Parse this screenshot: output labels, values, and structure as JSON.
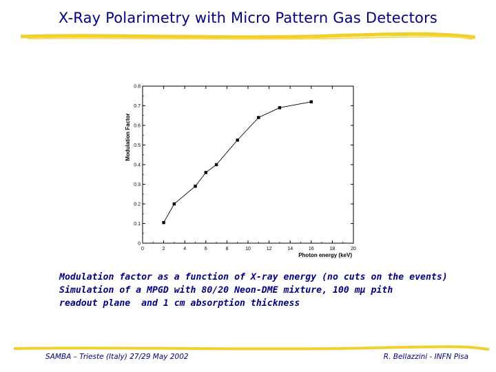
{
  "slide": {
    "title": "X-Ray Polarimetry with Micro Pattern Gas Detectors",
    "caption_lines": [
      "Modulation factor as a function of X-ray energy (no cuts on the events)",
      "Simulation of a MPGD with 80/20 Neon-DME mixture, 100 mμ pith",
      "readout plane  and 1 cm absorption thickness"
    ],
    "footer_left": "SAMBA – Trieste (Italy) 27/29 May 2002",
    "footer_right": "R. Bellazzini - INFN Pisa",
    "colors": {
      "title": "#000080",
      "accent": "#f2d02b"
    }
  },
  "chart_data": {
    "type": "line",
    "title": "",
    "xlabel": "Photon energy (keV)",
    "ylabel": "Modulation Factor",
    "xlim": [
      0,
      20
    ],
    "ylim": [
      0,
      0.8
    ],
    "xticks": [
      0,
      2,
      4,
      6,
      8,
      10,
      12,
      14,
      16,
      18,
      20
    ],
    "yticks": [
      0,
      0.1,
      0.2,
      0.3,
      0.4,
      0.5,
      0.6,
      0.7,
      0.8
    ],
    "grid": false,
    "series": [
      {
        "x": [
          2,
          3,
          5,
          6,
          7,
          9,
          11,
          13,
          16
        ],
        "y": [
          0.105,
          0.2,
          0.29,
          0.36,
          0.4,
          0.525,
          0.64,
          0.69,
          0.72
        ]
      }
    ]
  }
}
